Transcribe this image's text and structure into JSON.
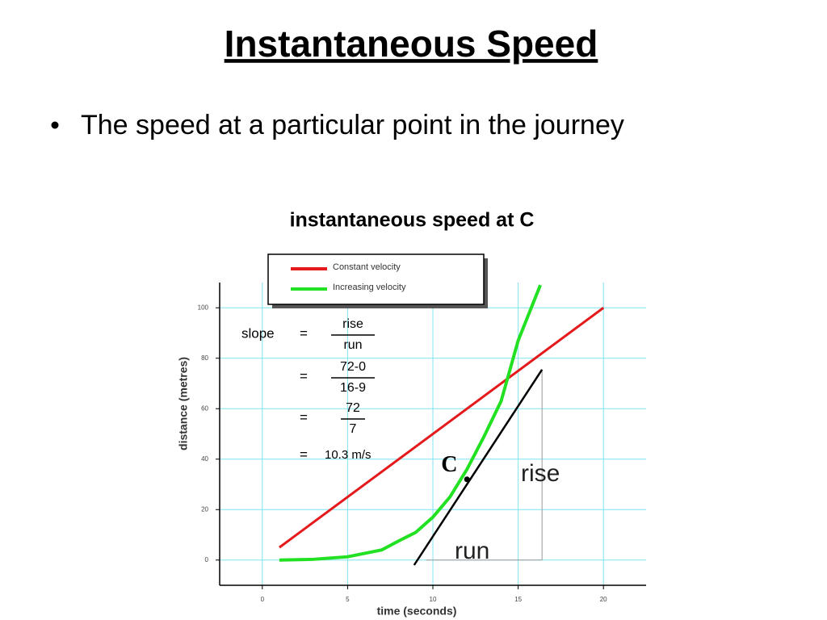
{
  "header": {
    "title": "Instantaneous Speed"
  },
  "bullets": [
    "The speed at a particular point in the journey"
  ],
  "chart_data": {
    "type": "line",
    "title": "instantaneous speed at C",
    "x_label": "time (seconds)",
    "y_label": "distance (metres)",
    "xlim": [
      -2.5,
      22.5
    ],
    "ylim": [
      -10,
      110
    ],
    "xticks": [
      0,
      5,
      10,
      15,
      20
    ],
    "yticks": [
      0,
      20,
      40,
      60,
      80,
      100
    ],
    "grid": true,
    "grid_color": "#7fe3f0",
    "legend": "top-left",
    "series": [
      {
        "name": "Constant velocity",
        "color": "#e41a1c",
        "x": [
          1,
          20
        ],
        "values": [
          5,
          100
        ]
      },
      {
        "name": "Increasing velocity",
        "color": "#22e022",
        "x": [
          1,
          3,
          5,
          7,
          8,
          9,
          10,
          11,
          12,
          13,
          14,
          15,
          16.3
        ],
        "values": [
          0,
          0.3,
          1.3,
          4,
          7.6,
          11,
          17,
          25,
          36,
          49,
          63,
          87,
          109
        ]
      }
    ],
    "tangent": {
      "color": "#000000",
      "x": [
        8.9,
        16.4
      ],
      "values": [
        -2,
        75.5
      ]
    },
    "point": {
      "label": "C",
      "x": 12,
      "y": 32
    },
    "rise_label": "rise",
    "run_label": "run",
    "formula": [
      {
        "lhs": "slope",
        "eq": "=",
        "num": "rise",
        "den": "run"
      },
      {
        "eq": "=",
        "num": "72-0",
        "den": "16-9"
      },
      {
        "eq": "=",
        "num": "72",
        "den": "7"
      },
      {
        "eq": "=",
        "text": "10.3 m/s"
      }
    ]
  }
}
